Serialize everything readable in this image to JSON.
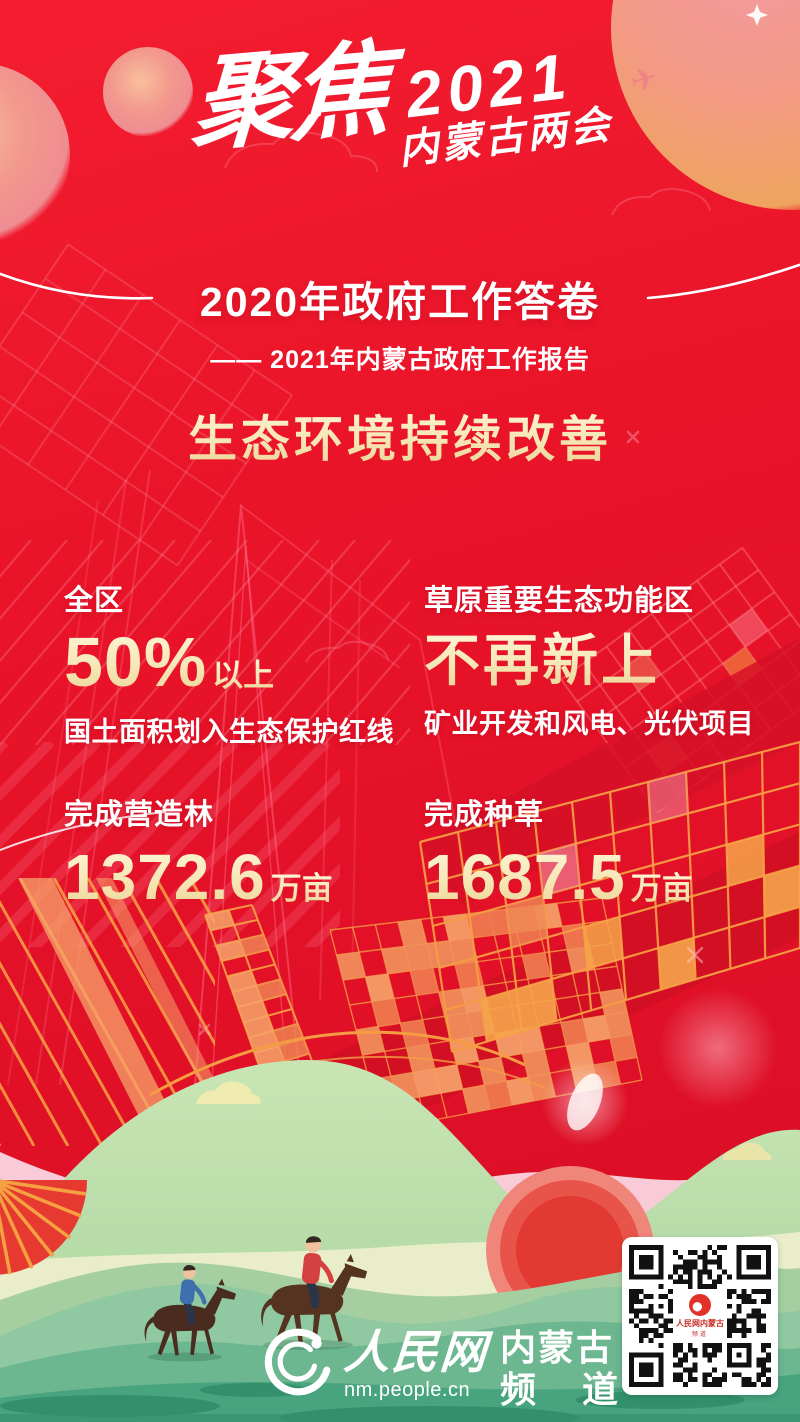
{
  "poster": {
    "brand": {
      "focus": "聚焦",
      "year": "2021",
      "event": "内蒙古两会"
    },
    "title": {
      "main": "2020年政府工作答卷",
      "subtitle": "—— 2021年内蒙古政府工作报告",
      "section": "生态环境持续改善"
    },
    "stats": [
      {
        "prefix": "全区",
        "value": "50%",
        "unit": "以上",
        "desc": "国土面积划入生态保护红线"
      },
      {
        "prefix": "草原重要生态功能区",
        "value": "不再新上",
        "unit": "",
        "desc": "矿业开发和风电、光伏项目"
      },
      {
        "prefix": "完成营造林",
        "value": "1372.6",
        "unit": "万亩",
        "desc": ""
      },
      {
        "prefix": "完成种草",
        "value": "1687.5",
        "unit": "万亩",
        "desc": ""
      }
    ],
    "footer": {
      "site_name": "人民网",
      "site_url": "nm.people.cn",
      "channel_region": "内蒙古",
      "channel_word1": "频",
      "channel_word2": "道",
      "qr_center_line1": "人民网内蒙古",
      "qr_center_line2": "频道"
    },
    "colors": {
      "bg_red": "#e61227",
      "gold": "#f5e4ae",
      "white": "#ffffff",
      "line_orange": "#f59c43",
      "line_pink": "#ff6480",
      "ribbon_pink": "#f9cbd8",
      "hill_light_green": "#b5dba9",
      "hill_teal": "#48a37f",
      "sun_red": "#e23a33"
    }
  }
}
